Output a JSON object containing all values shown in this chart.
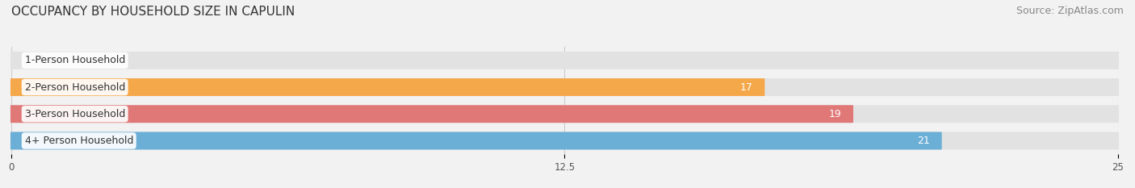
{
  "title": "OCCUPANCY BY HOUSEHOLD SIZE IN CAPULIN",
  "source": "Source: ZipAtlas.com",
  "categories": [
    "1-Person Household",
    "2-Person Household",
    "3-Person Household",
    "4+ Person Household"
  ],
  "values": [
    0,
    17,
    19,
    21
  ],
  "bar_colors": [
    "#f4a0b0",
    "#f5a84a",
    "#e07878",
    "#6baed6"
  ],
  "bar_label_colors": [
    "#555555",
    "#ffffff",
    "#ffffff",
    "#ffffff"
  ],
  "xlim": [
    0,
    25
  ],
  "xticks": [
    0,
    12.5,
    25
  ],
  "background_color": "#f2f2f2",
  "bar_bg_color": "#e2e2e2",
  "title_fontsize": 11,
  "source_fontsize": 9,
  "label_fontsize": 9,
  "value_fontsize": 9,
  "bar_height": 0.62
}
